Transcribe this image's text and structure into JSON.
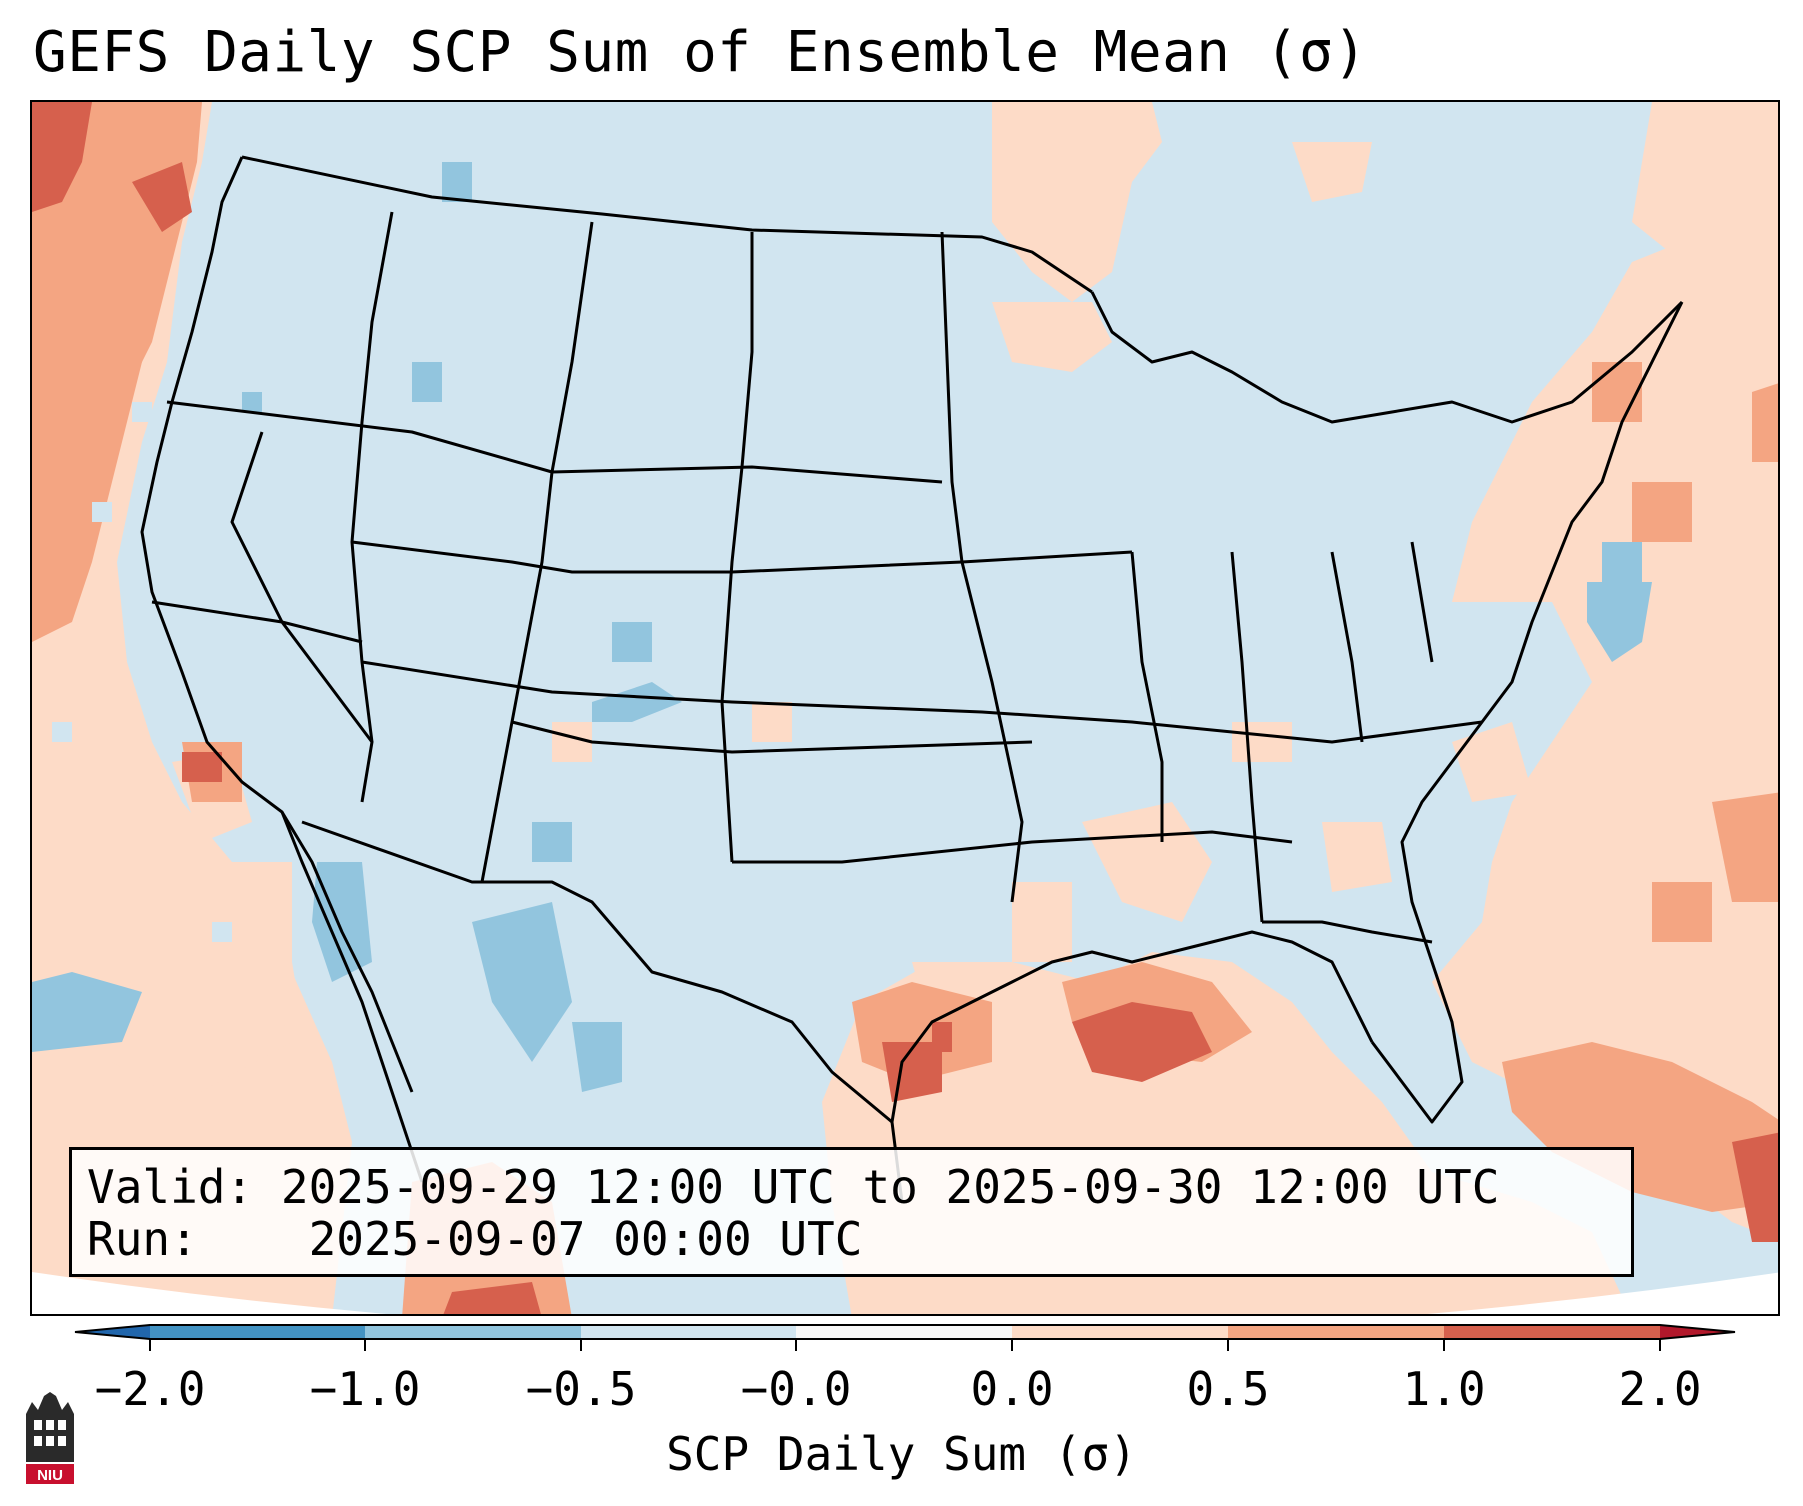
{
  "title": "GEFS Daily SCP Sum of Ensemble Mean (σ)",
  "info_box": {
    "valid_label": "Valid:",
    "valid_value": "2025-09-29 12:00 UTC to 2025-09-30 12:00 UTC",
    "run_label": "Run:",
    "run_value": "2025-09-07 00:00 UTC"
  },
  "colorbar": {
    "label": "SCP Daily Sum (σ)",
    "tick_labels": [
      "−2.0",
      "−1.0",
      "−0.5",
      "−0.0",
      "0.0",
      "0.5",
      "1.0",
      "2.0"
    ],
    "bins": [
      {
        "from": -2.0,
        "to": -1.0,
        "color": "#4393c3"
      },
      {
        "from": -1.0,
        "to": -0.5,
        "color": "#92c5de"
      },
      {
        "from": -0.5,
        "to": -0.0,
        "color": "#d1e5f0"
      },
      {
        "from": -0.0,
        "to": 0.0,
        "color": "#f7f7f7"
      },
      {
        "from": 0.0,
        "to": 0.5,
        "color": "#fddbc7"
      },
      {
        "from": 0.5,
        "to": 1.0,
        "color": "#f4a582"
      },
      {
        "from": 1.0,
        "to": 2.0,
        "color": "#d6604d"
      }
    ],
    "extend_low_color": "#2166ac",
    "extend_high_color": "#b2182b"
  },
  "map": {
    "base_color": "#d1e5f0",
    "outside_color": "#ffffff",
    "border_color": "#000000"
  },
  "logo": {
    "text": "NIU",
    "colors": {
      "tower": "#2a2a2a",
      "banner": "#c8102e"
    }
  }
}
